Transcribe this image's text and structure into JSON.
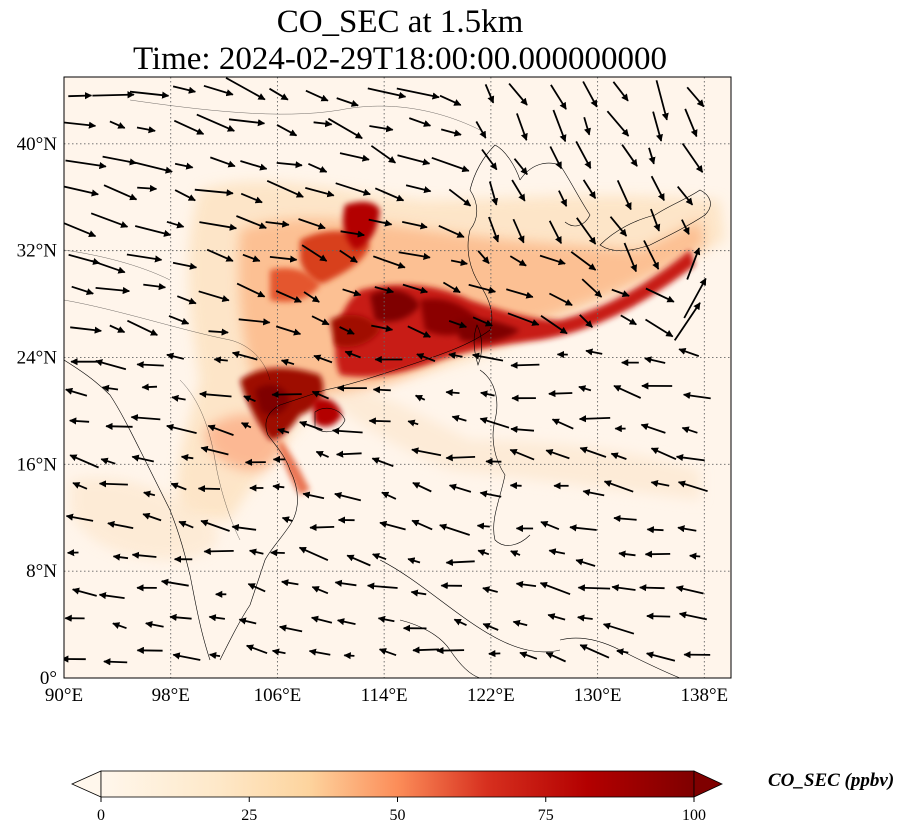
{
  "title": {
    "line1": "CO_SEC at 1.5km",
    "line2": "Time: 2024-02-29T18:00:00.000000000"
  },
  "map": {
    "lon_range": [
      90,
      140
    ],
    "lat_range": [
      0,
      45
    ],
    "lon_ticks": [
      "90°E",
      "98°E",
      "106°E",
      "114°E",
      "122°E",
      "130°E",
      "138°E"
    ],
    "lat_ticks": [
      "0°",
      "8°N",
      "16°N",
      "24°N",
      "32°N",
      "40°N"
    ],
    "gridlines": true,
    "background_color": "#fff5eb"
  },
  "colorbar": {
    "label": "CO_SEC (ppbv)",
    "ticks": [
      "0",
      "25",
      "50",
      "75",
      "100"
    ],
    "range": [
      0,
      100
    ],
    "extend": "both",
    "colormap": "OrRd",
    "colors": [
      "#fff7ec",
      "#fee8c8",
      "#fdd49e",
      "#fdbb84",
      "#fc8d59",
      "#ef6548",
      "#d7301f",
      "#b30000",
      "#7f0000"
    ]
  }
}
